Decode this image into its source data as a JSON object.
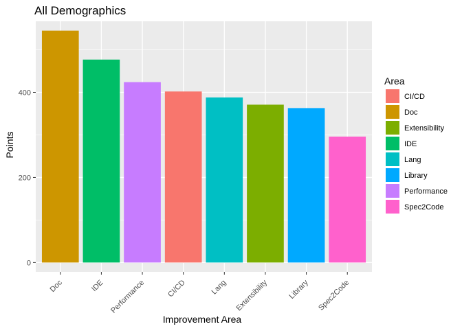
{
  "chart_data": {
    "type": "bar",
    "title": "All Demographics",
    "xlabel": "Improvement Area",
    "ylabel": "Points",
    "categories": [
      "Doc",
      "IDE",
      "Performance",
      "CI/CD",
      "Lang",
      "Extensibility",
      "Library",
      "Spec2Code"
    ],
    "values": [
      545,
      477,
      424,
      402,
      388,
      371,
      363,
      296
    ],
    "ylim": [
      -22,
      567
    ],
    "yticks": [
      0,
      200,
      400
    ],
    "grid": true,
    "legend": {
      "title": "Area",
      "placement": "right",
      "entries": [
        "CI/CD",
        "Doc",
        "Extensibility",
        "IDE",
        "Lang",
        "Library",
        "Performance",
        "Spec2Code"
      ]
    },
    "colors": {
      "CI/CD": "#F8766D",
      "Doc": "#CD9600",
      "Extensibility": "#7CAE00",
      "IDE": "#00BE67",
      "Lang": "#00BFC4",
      "Library": "#00A9FF",
      "Performance": "#C77CFF",
      "Spec2Code": "#FF61CC"
    },
    "panel_color": "#EBEBEB",
    "grid_color": "#FFFFFF"
  }
}
